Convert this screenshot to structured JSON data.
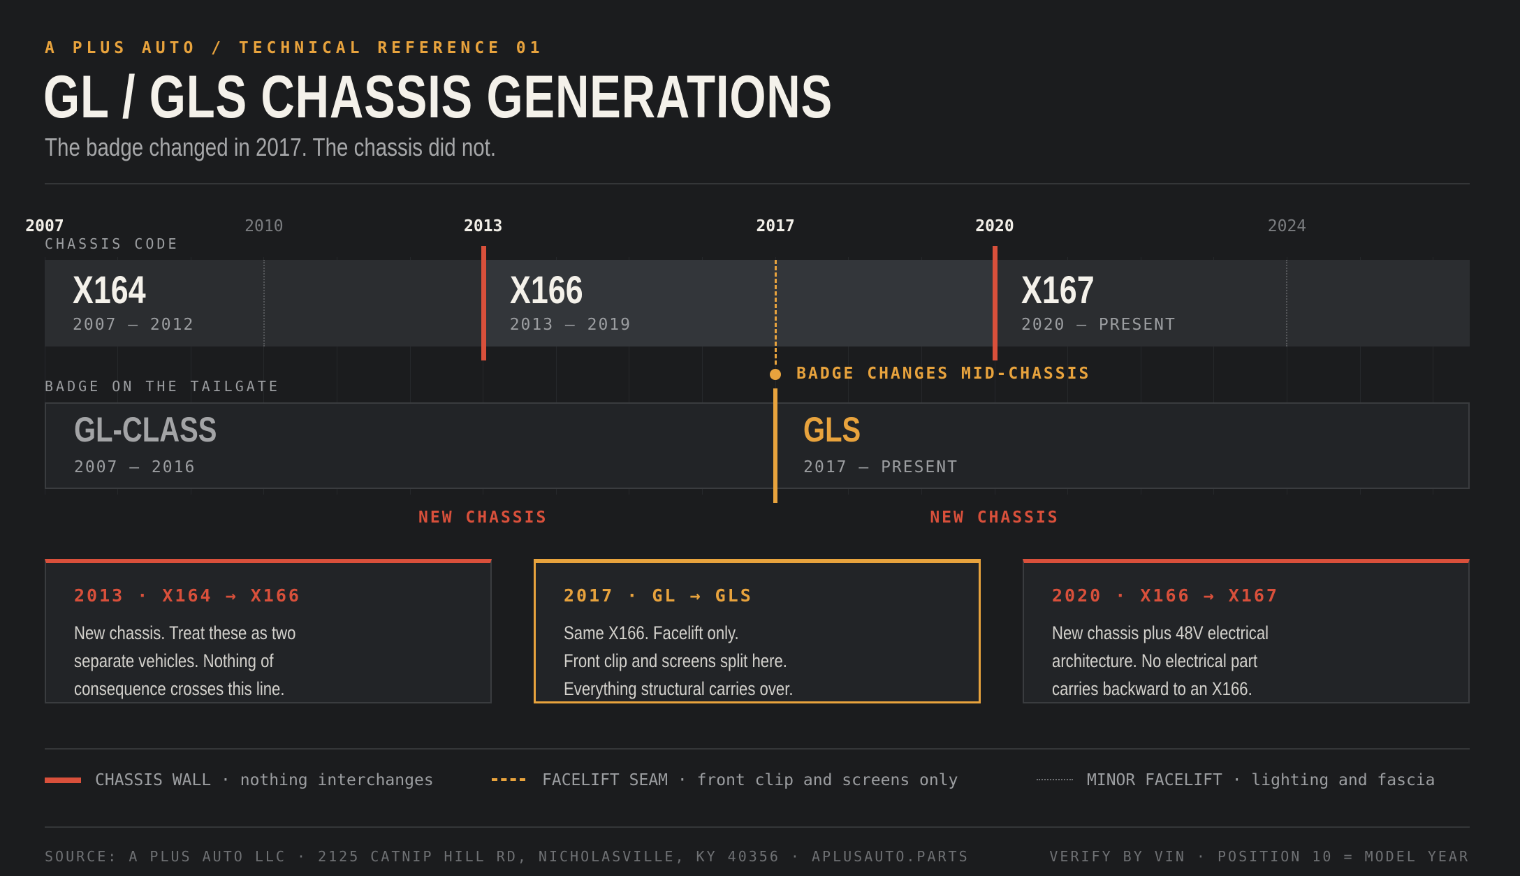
{
  "header": {
    "kicker": "A PLUS AUTO / TECHNICAL REFERENCE 01",
    "title": "GL / GLS CHASSIS GENERATIONS",
    "subtitle": "The badge changed in 2017. The chassis did not."
  },
  "timeline": {
    "start_year": 2007,
    "end_year": 2026.5,
    "ticks": [
      {
        "label": "2007",
        "year": 2007,
        "major": true
      },
      {
        "label": "2010",
        "year": 2010,
        "major": false
      },
      {
        "label": "2013",
        "year": 2013,
        "major": true
      },
      {
        "label": "2017",
        "year": 2017,
        "major": true
      },
      {
        "label": "2020",
        "year": 2020,
        "major": true
      },
      {
        "label": "2024",
        "year": 2024,
        "major": false
      }
    ]
  },
  "chassis_row": {
    "label": "CHASSIS CODE",
    "bands": [
      {
        "name": "X164",
        "years": "2007 – 2012",
        "start": 2007,
        "end": 2013
      },
      {
        "name": "X166",
        "years": "2013 – 2019",
        "start": 2013,
        "end": 2020
      },
      {
        "name": "X167",
        "years": "2020 – PRESENT",
        "start": 2020,
        "end": 2026.5
      }
    ]
  },
  "badge_row": {
    "label": "BADGE ON THE TAILGATE",
    "bands": [
      {
        "name": "GL-CLASS",
        "years": "2007 – 2016",
        "start": 2007,
        "end": 2017
      },
      {
        "name": "GLS",
        "years": "2017 – PRESENT",
        "start": 2017,
        "end": 2026.5
      }
    ]
  },
  "events": {
    "badge_change": {
      "year": 2017,
      "label": "BADGE CHANGES MID-CHASSIS"
    },
    "new_chassis": [
      {
        "year": 2013,
        "label": "NEW CHASSIS"
      },
      {
        "year": 2020,
        "label": "NEW CHASSIS"
      }
    ],
    "minor_facelifts": [
      2010,
      2024
    ]
  },
  "cards": [
    {
      "heading": "2013 · X164 → X166",
      "lines": [
        "New chassis. Treat these as two",
        "separate vehicles. Nothing of",
        "consequence crosses this line."
      ]
    },
    {
      "heading": "2017 · GL → GLS",
      "lines": [
        "Same X166. Facelift only.",
        "Front clip and screens split here.",
        "Everything structural carries over."
      ]
    },
    {
      "heading": "2020 · X166 → X167",
      "lines": [
        "New chassis plus 48V electrical",
        "architecture. No electrical part",
        "carries backward to an X166."
      ]
    }
  ],
  "legend": [
    {
      "title": "CHASSIS WALL",
      "desc": "nothing interchanges"
    },
    {
      "title": "FACELIFT SEAM",
      "desc": "front clip and screens only"
    },
    {
      "title": "MINOR FACELIFT",
      "desc": "lighting and fascia"
    }
  ],
  "footer": {
    "source": "SOURCE: A PLUS AUTO LLC · 2125 CATNIP HILL RD, NICHOLASVILLE, KY 40356 · APLUSAUTO.PARTS",
    "verify": "VERIFY BY VIN · POSITION 10 = MODEL YEAR"
  },
  "colors": {
    "background": "#1b1c1e",
    "chassis_wall": "#d9503b",
    "facelift_seam": "#e8a33d",
    "band_dark": "#26282b",
    "band_mid": "#33363a",
    "text_primary": "#f4f1ea",
    "text_muted": "#9c9ea1"
  }
}
